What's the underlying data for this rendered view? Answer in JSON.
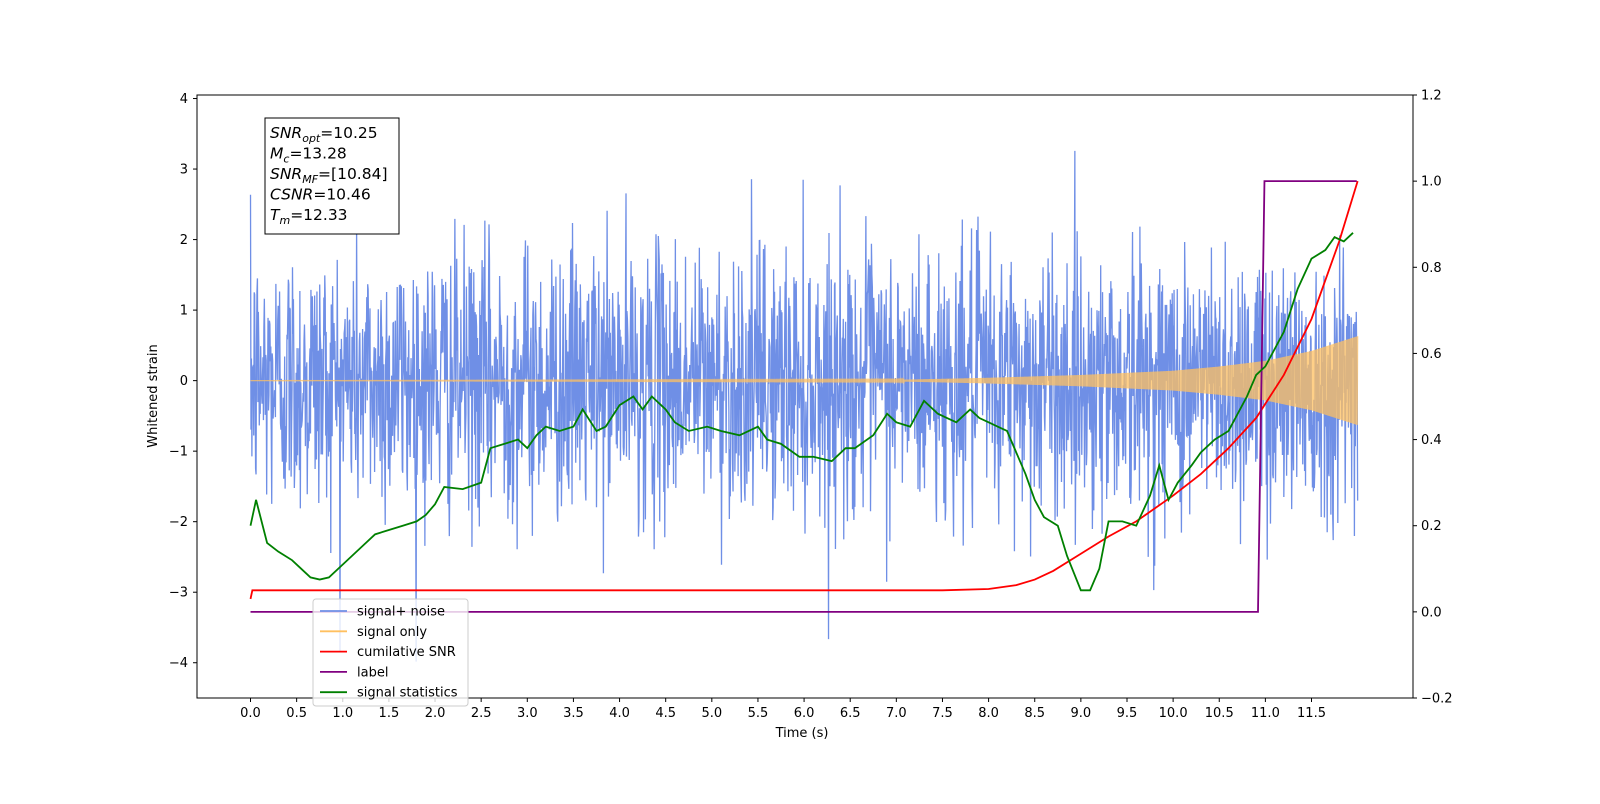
{
  "chart_data": {
    "type": "line",
    "xlabel": "Time (s)",
    "ylabel": "Whitened strain",
    "xlim": [
      -0.58,
      12.6
    ],
    "ylim": [
      -4.5,
      4.05
    ],
    "y2lim": [
      -0.2,
      1.2
    ],
    "x_ticks": [
      "0.0",
      "0.5",
      "1.0",
      "1.5",
      "2.0",
      "2.5",
      "3.0",
      "3.5",
      "4.0",
      "4.5",
      "5.0",
      "5.5",
      "6.0",
      "6.5",
      "7.0",
      "7.5",
      "8.0",
      "8.5",
      "9.0",
      "9.5",
      "10.0",
      "10.5",
      "11.0",
      "11.5"
    ],
    "y_ticks": [
      "4",
      "3",
      "2",
      "1",
      "0",
      "−1",
      "−2",
      "−3",
      "−4"
    ],
    "y2_ticks": [
      "1.2",
      "1.0",
      "0.8",
      "0.6",
      "0.4",
      "0.2",
      "0.0",
      "−0.2"
    ],
    "grid": false,
    "legend_position": "lower-left",
    "stats_box": {
      "lines": [
        {
          "sym": "SNR",
          "sub": "opt",
          "val": "=10.25"
        },
        {
          "sym": "M",
          "sub": "c",
          "val": "=13.28"
        },
        {
          "sym": "SNR",
          "sub": "MF",
          "val": "=[10.84]"
        },
        {
          "sym": "CSNR",
          "sub": "",
          "val": "=10.46"
        },
        {
          "sym": "T",
          "sub": "m",
          "val": "=12.33"
        }
      ]
    },
    "legend": [
      {
        "label": "signal+ noise",
        "color": "#6f8fe6"
      },
      {
        "label": "signal only",
        "color": "#ffc060"
      },
      {
        "label": "cumilative SNR",
        "color": "#ff0000"
      },
      {
        "label": "label",
        "color": "#800080"
      },
      {
        "label": "signal statistics",
        "color": "#008000"
      }
    ],
    "series": [
      {
        "name": "signal+ noise",
        "axis": "left",
        "color": "#6f8fe6",
        "x_range": [
          0.0,
          12.0
        ],
        "noise_std": 0.95,
        "y_min": -4.1,
        "y_max": 3.65
      },
      {
        "name": "signal only",
        "axis": "left",
        "color": "#ffc060",
        "x_range": [
          0.0,
          12.0
        ],
        "amplitude_envelope": {
          "x": [
            0.0,
            7.0,
            8.0,
            9.0,
            10.0,
            10.5,
            11.0,
            11.5,
            12.0
          ],
          "amp": [
            0.0,
            0.01,
            0.04,
            0.08,
            0.14,
            0.2,
            0.28,
            0.42,
            0.63
          ]
        }
      },
      {
        "name": "cumilative SNR",
        "axis": "right",
        "color": "#ff0000",
        "x": [
          0.0,
          0.02,
          2.0,
          4.0,
          6.0,
          7.0,
          7.5,
          8.0,
          8.3,
          8.5,
          8.7,
          9.0,
          9.3,
          9.6,
          10.0,
          10.3,
          10.6,
          10.9,
          11.2,
          11.5,
          11.8,
          12.0
        ],
        "y": [
          0.03,
          0.05,
          0.05,
          0.05,
          0.05,
          0.05,
          0.05,
          0.053,
          0.062,
          0.075,
          0.095,
          0.135,
          0.175,
          0.21,
          0.27,
          0.32,
          0.38,
          0.45,
          0.55,
          0.68,
          0.86,
          1.0
        ]
      },
      {
        "name": "label",
        "axis": "right",
        "color": "#800080",
        "x": [
          0.0,
          10.92,
          10.99,
          11.0,
          11.99
        ],
        "y": [
          0.0,
          0.0,
          1.0,
          1.0,
          1.0
        ]
      },
      {
        "name": "signal statistics",
        "axis": "right",
        "color": "#008000",
        "x": [
          0.0,
          0.06,
          0.18,
          0.3,
          0.45,
          0.55,
          0.65,
          0.75,
          0.85,
          1.0,
          1.2,
          1.35,
          1.5,
          1.65,
          1.8,
          1.9,
          2.0,
          2.1,
          2.3,
          2.5,
          2.6,
          2.75,
          2.9,
          3.0,
          3.1,
          3.2,
          3.35,
          3.5,
          3.6,
          3.75,
          3.85,
          4.0,
          4.15,
          4.25,
          4.35,
          4.5,
          4.6,
          4.75,
          4.95,
          5.1,
          5.3,
          5.5,
          5.6,
          5.75,
          5.95,
          6.1,
          6.3,
          6.45,
          6.55,
          6.75,
          6.9,
          7.0,
          7.15,
          7.3,
          7.45,
          7.55,
          7.65,
          7.8,
          7.9,
          8.0,
          8.1,
          8.2,
          8.4,
          8.5,
          8.6,
          8.75,
          8.85,
          9.0,
          9.1,
          9.2,
          9.3,
          9.45,
          9.6,
          9.75,
          9.85,
          9.95,
          10.05,
          10.2,
          10.3,
          10.45,
          10.6,
          10.8,
          10.9,
          11.0,
          11.2,
          11.35,
          11.5,
          11.65,
          11.75,
          11.85,
          11.95
        ],
        "y": [
          0.2,
          0.26,
          0.16,
          0.14,
          0.12,
          0.1,
          0.08,
          0.075,
          0.08,
          0.11,
          0.15,
          0.18,
          0.19,
          0.2,
          0.21,
          0.225,
          0.25,
          0.29,
          0.285,
          0.3,
          0.38,
          0.39,
          0.4,
          0.38,
          0.41,
          0.43,
          0.42,
          0.43,
          0.47,
          0.42,
          0.43,
          0.48,
          0.5,
          0.47,
          0.5,
          0.47,
          0.44,
          0.42,
          0.43,
          0.42,
          0.41,
          0.43,
          0.4,
          0.39,
          0.36,
          0.36,
          0.35,
          0.38,
          0.38,
          0.41,
          0.46,
          0.44,
          0.43,
          0.49,
          0.46,
          0.45,
          0.44,
          0.47,
          0.45,
          0.44,
          0.43,
          0.42,
          0.32,
          0.26,
          0.22,
          0.2,
          0.13,
          0.05,
          0.05,
          0.1,
          0.21,
          0.21,
          0.2,
          0.27,
          0.34,
          0.26,
          0.3,
          0.34,
          0.37,
          0.4,
          0.42,
          0.5,
          0.55,
          0.57,
          0.65,
          0.75,
          0.82,
          0.84,
          0.87,
          0.86,
          0.88
        ]
      }
    ]
  }
}
